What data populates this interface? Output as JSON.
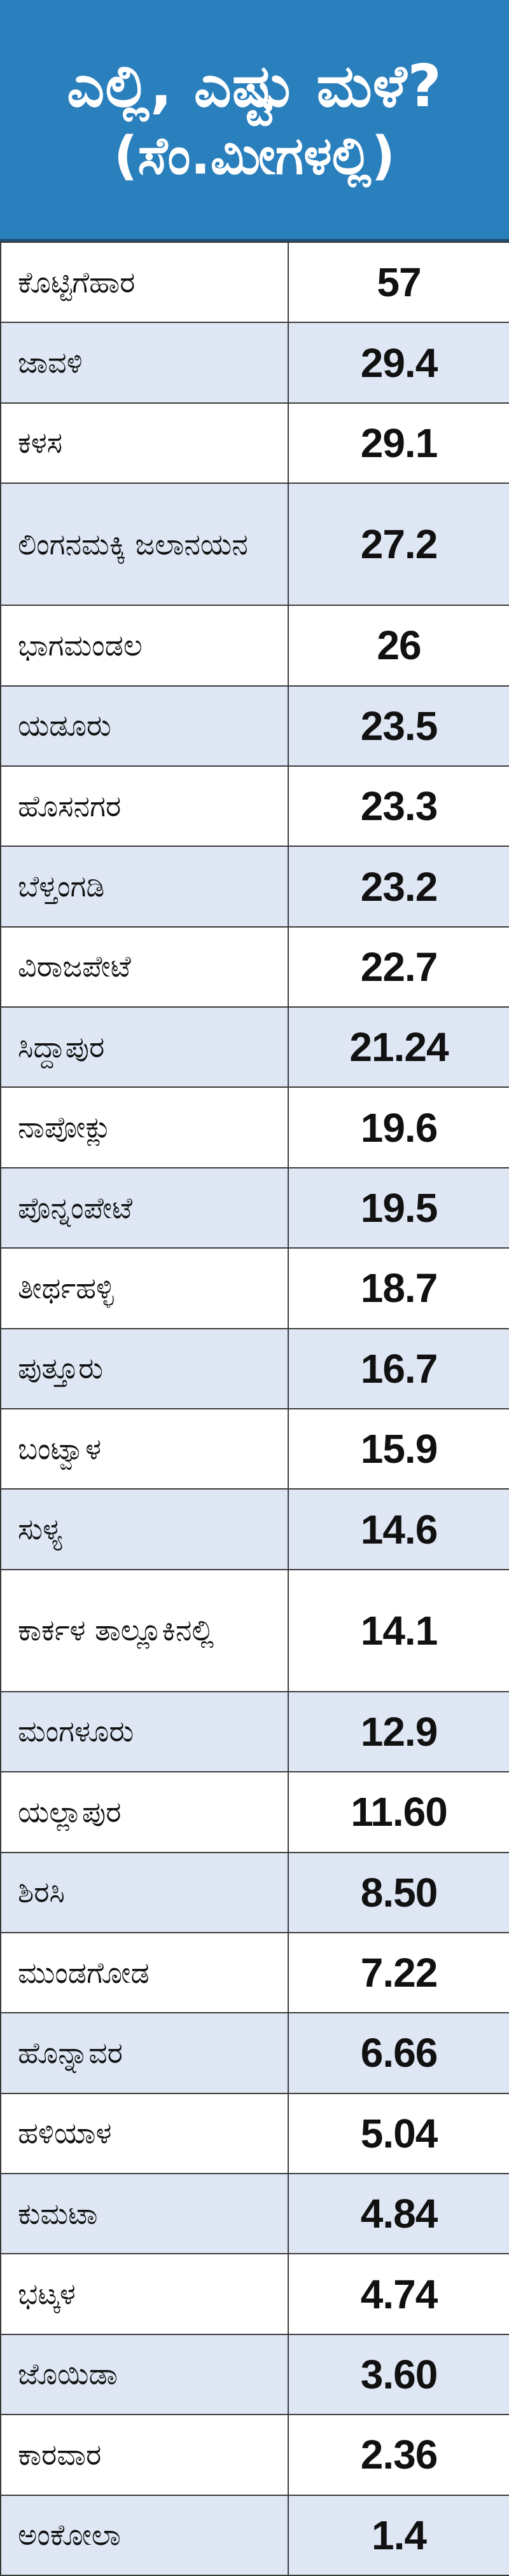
{
  "header": {
    "title_line1": "ಎಲ್ಲಿ, ಎಷ್ಟು ಮಳೆ?",
    "title_line2": "(ಸೆಂ.ಮೀಗಳಲ್ಲಿ)",
    "background_color": "#2a7fbd",
    "text_color": "#ffffff"
  },
  "table": {
    "row_alt_color": "#dfe7f4",
    "rows": [
      {
        "place": "ಕೊಟ್ಟಿಗೆಹಾರ",
        "value": "57"
      },
      {
        "place": "ಜಾವಳಿ",
        "value": "29.4"
      },
      {
        "place": "ಕಳಸ",
        "value": "29.1"
      },
      {
        "place": "ಲಿಂಗನಮಕ್ಕಿ ಜಲಾನಯನ",
        "value": "27.2"
      },
      {
        "place": "ಭಾಗಮಂಡಲ",
        "value": "26"
      },
      {
        "place": "ಯಡೂರು",
        "value": "23.5"
      },
      {
        "place": "ಹೊಸನಗರ",
        "value": "23.3"
      },
      {
        "place": "ಬೆಳ್ತಂಗಡಿ",
        "value": "23.2"
      },
      {
        "place": "ವಿರಾಜಪೇಟೆ",
        "value": "22.7"
      },
      {
        "place": "ಸಿದ್ದಾಪುರ",
        "value": "21.24"
      },
      {
        "place": "ನಾಪೋಕ್ಲು",
        "value": "19.6"
      },
      {
        "place": "ಪೊನ್ನಂಪೇಟೆ",
        "value": "19.5"
      },
      {
        "place": "ತೀರ್ಥಹಳ್ಳಿ",
        "value": "18.7"
      },
      {
        "place": "ಪುತ್ತೂರು",
        "value": "16.7"
      },
      {
        "place": "ಬಂಟ್ವಾಳ",
        "value": "15.9"
      },
      {
        "place": "ಸುಳ್ಯ",
        "value": "14.6"
      },
      {
        "place": "ಕಾರ್ಕಳ ತಾಲ್ಲೂಕಿನಲ್ಲಿ",
        "value": "14.1"
      },
      {
        "place": "ಮಂಗಳೂರು",
        "value": "12.9"
      },
      {
        "place": "ಯಲ್ಲಾಪುರ",
        "value": "11.60"
      },
      {
        "place": "ಶಿರಸಿ",
        "value": "8.50"
      },
      {
        "place": "ಮುಂಡಗೋಡ",
        "value": "7.22"
      },
      {
        "place": "ಹೊನ್ನಾವರ",
        "value": "6.66"
      },
      {
        "place": "ಹಳಿಯಾಳ",
        "value": "5.04"
      },
      {
        "place": "ಕುಮಟಾ",
        "value": "4.84"
      },
      {
        "place": "ಭಟ್ಕಳ",
        "value": "4.74"
      },
      {
        "place": "ಜೊಯಿಡಾ",
        "value": "3.60"
      },
      {
        "place": "ಕಾರವಾರ",
        "value": "2.36"
      },
      {
        "place": "ಅಂಕೋಲಾ",
        "value": "1.4"
      }
    ]
  }
}
